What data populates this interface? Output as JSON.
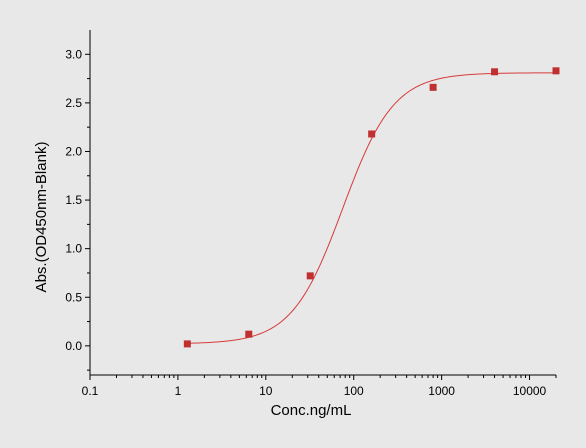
{
  "chart_data": {
    "type": "scatter",
    "title": "",
    "xlabel": "Conc.ng/mL",
    "ylabel": "Abs.(OD450nm-Blank)",
    "x_scale": "log",
    "xlim": [
      0.1,
      20000
    ],
    "ylim": [
      -0.3,
      3.25
    ],
    "x_ticks": [
      0.1,
      1,
      10,
      100,
      1000,
      10000
    ],
    "x_tick_labels": [
      "0.1",
      "1",
      "10",
      "100",
      "1000",
      "10000"
    ],
    "y_ticks": [
      0.0,
      0.5,
      1.0,
      1.5,
      2.0,
      2.5,
      3.0
    ],
    "y_tick_labels": [
      "0.0",
      "0.5",
      "1.0",
      "1.5",
      "2.0",
      "2.5",
      "3.0"
    ],
    "grid": false,
    "series": [
      {
        "x": [
          1.28,
          6.4,
          32,
          160,
          800,
          4000,
          20000
        ],
        "y": [
          0.02,
          0.12,
          0.72,
          2.18,
          2.66,
          2.82,
          2.83
        ]
      }
    ],
    "fit_curve": {
      "model": "4PL",
      "bottom": 0.02,
      "top": 2.81,
      "ec50": 75,
      "hill": 1.5
    },
    "colors": {
      "points": "#c03030",
      "curve": "#d83a3a",
      "axis": "#000000",
      "background": "#e8e8e8"
    }
  }
}
